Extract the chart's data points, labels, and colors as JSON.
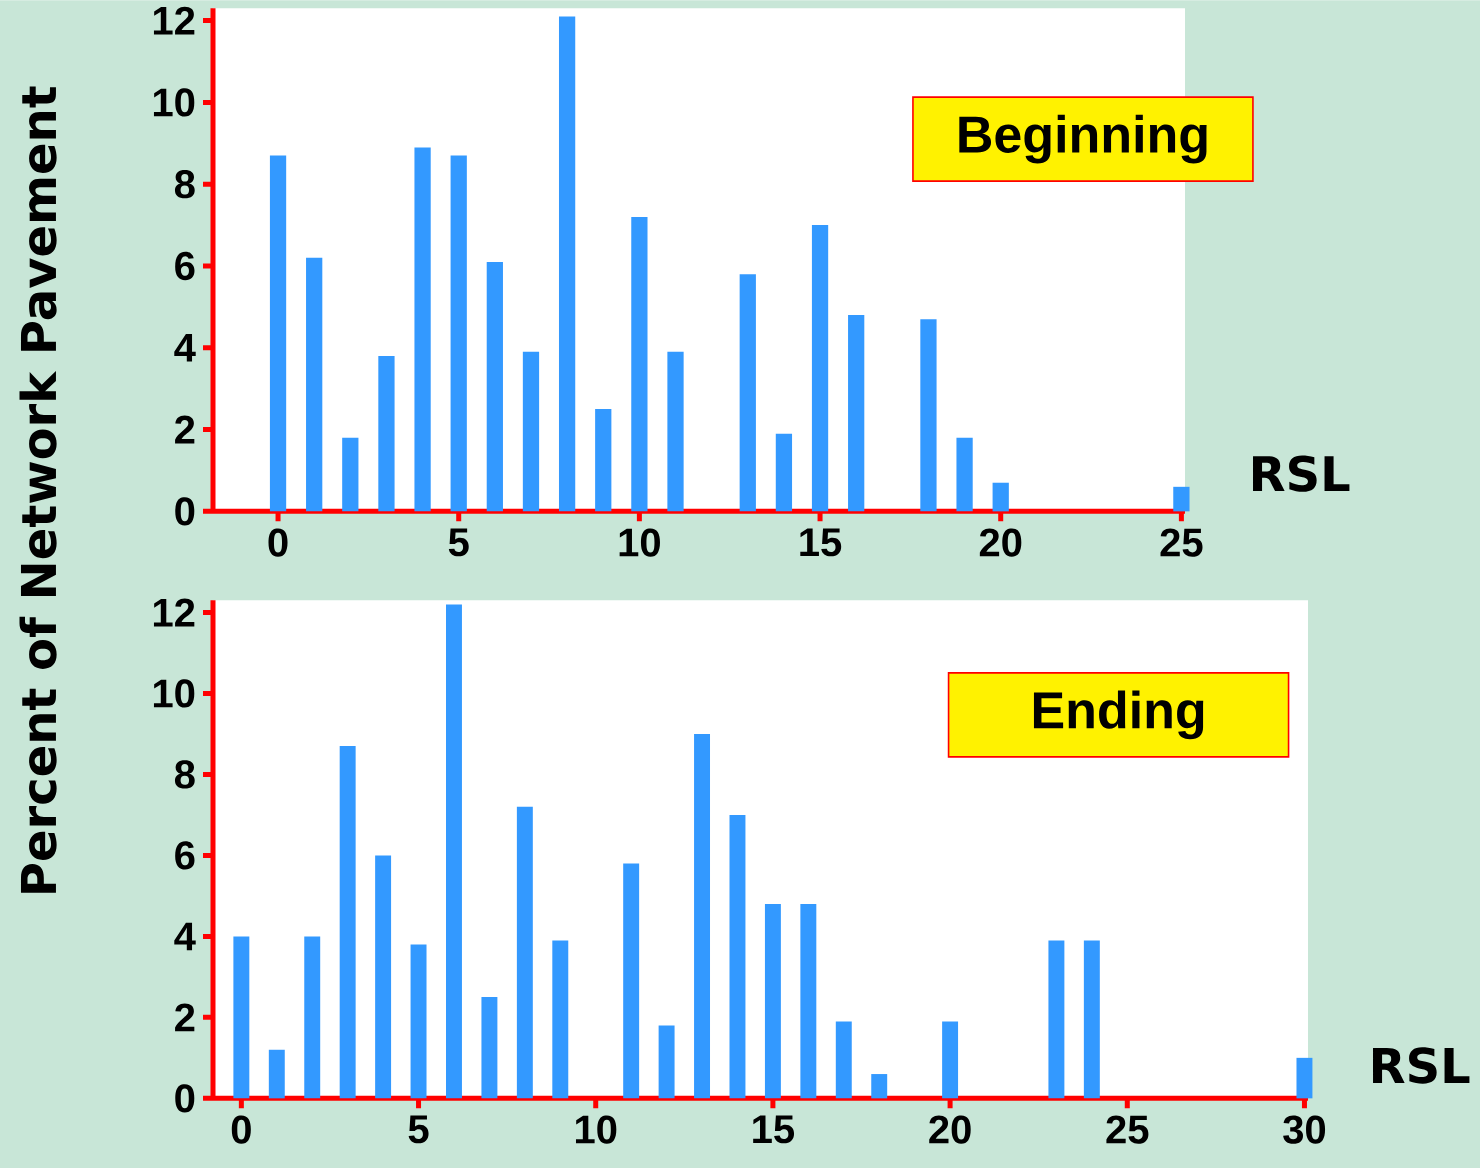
{
  "chart_data": [
    {
      "type": "bar",
      "ylabel": "Percent of Network Pavement",
      "xlabel": "RSL",
      "annotations": [
        "Beginning"
      ],
      "color": "#3399ff",
      "x": [
        0,
        1,
        2,
        3,
        4,
        5,
        6,
        7,
        8,
        9,
        10,
        11,
        13,
        14,
        15,
        16,
        18,
        19,
        20,
        25
      ],
      "values": [
        8.7,
        6.2,
        1.8,
        3.8,
        8.9,
        8.7,
        6.1,
        3.9,
        12.1,
        2.5,
        7.2,
        3.9,
        5.8,
        1.9,
        7.0,
        4.8,
        4.7,
        1.8,
        0.7,
        0.6
      ],
      "xlim": [
        -1.8,
        25.1
      ],
      "xticks": [
        0,
        5,
        10,
        15,
        20,
        25
      ],
      "ylim": [
        0,
        12.3
      ],
      "yticks": [
        0,
        2,
        4,
        6,
        8,
        10,
        12
      ]
    },
    {
      "type": "bar",
      "xlabel": "RSL",
      "annotations": [
        "Ending"
      ],
      "color": "#3399ff",
      "x": [
        0,
        1,
        2,
        3,
        4,
        5,
        6,
        7,
        8,
        9,
        11,
        12,
        13,
        14,
        15,
        16,
        17,
        18,
        20,
        23,
        24,
        30
      ],
      "values": [
        4.0,
        1.2,
        4.0,
        8.7,
        6.0,
        3.8,
        12.2,
        2.5,
        7.2,
        3.9,
        5.8,
        1.8,
        9.0,
        7.0,
        4.8,
        4.8,
        1.9,
        0.6,
        1.9,
        3.9,
        3.9,
        1.0
      ],
      "xlim": [
        -0.8,
        30.1
      ],
      "xticks": [
        0,
        5,
        10,
        15,
        20,
        25,
        30
      ],
      "ylim": [
        0,
        12.3
      ],
      "yticks": [
        0,
        2,
        4,
        6,
        8,
        10,
        12
      ]
    }
  ]
}
